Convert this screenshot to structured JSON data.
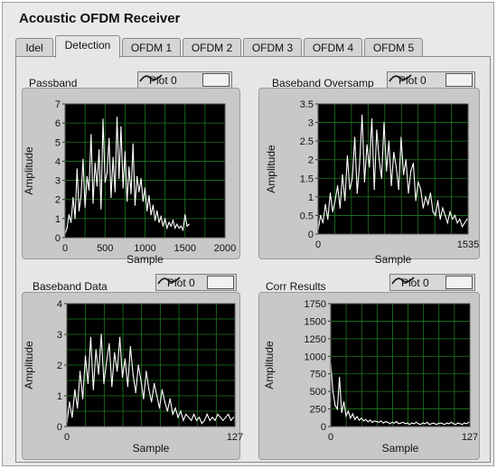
{
  "window": {
    "title": "Acoustic OFDM Receiver"
  },
  "tabs": [
    {
      "label": "Idel",
      "active": false
    },
    {
      "label": "Detection",
      "active": true
    },
    {
      "label": "OFDM 1",
      "active": false
    },
    {
      "label": "OFDM 2",
      "active": false
    },
    {
      "label": "OFDM 3",
      "active": false
    },
    {
      "label": "OFDM 4",
      "active": false
    },
    {
      "label": "OFDM 5",
      "active": false
    }
  ],
  "colors": {
    "plot_bg": "#000000",
    "grid": "#1f7a1f",
    "trace": "#ffffff"
  },
  "legend_label": "Plot 0",
  "chart_data": [
    {
      "type": "line",
      "title": "Passband",
      "xlabel": "Sample",
      "ylabel": "Amplitude",
      "xlim": [
        0,
        2000
      ],
      "ylim": [
        0,
        7
      ],
      "xticks": [
        "0",
        "500",
        "1000",
        "1500",
        "2000"
      ],
      "yticks": [
        "0",
        "1",
        "2",
        "3",
        "4",
        "5",
        "6",
        "7"
      ],
      "grid": true,
      "series": [
        {
          "values_x_start": 0,
          "values_x_step": 25,
          "values": [
            0.2,
            0.5,
            1.2,
            0.8,
            2.1,
            1.0,
            3.6,
            1.4,
            2.2,
            4.1,
            1.6,
            3.2,
            2.5,
            5.4,
            1.8,
            3.9,
            2.7,
            4.6,
            1.5,
            6.2,
            2.9,
            3.4,
            5.2,
            2.1,
            4.2,
            2.4,
            6.3,
            3.1,
            5.8,
            2.6,
            4.5,
            1.9,
            3.7,
            2.3,
            4.9,
            1.7,
            3.2,
            2.4,
            3.1,
            1.9,
            2.6,
            1.4,
            2.2,
            1.2,
            1.7,
            0.9,
            1.4,
            0.8,
            1.1,
            0.6,
            1.0,
            0.5,
            0.8,
            0.6,
            0.9,
            0.5,
            0.7,
            0.5,
            0.6,
            0.4,
            1.2,
            0.6,
            0.7
          ]
        }
      ]
    },
    {
      "type": "line",
      "title": "Baseband Oversamp",
      "xlabel": "Sample",
      "ylabel": "Amplitude",
      "xlim": [
        0,
        1535
      ],
      "ylim": [
        0,
        3.5
      ],
      "xticks": [
        "0",
        "1535"
      ],
      "yticks": [
        "0",
        "0.5",
        "1",
        "1.5",
        "2",
        "2.5",
        "3",
        "3.5"
      ],
      "grid": true,
      "series": [
        {
          "values_x_start": 0,
          "values_x_step": 25,
          "values": [
            0.1,
            0.5,
            0.3,
            0.8,
            0.4,
            1.1,
            0.6,
            0.9,
            1.3,
            0.7,
            1.6,
            0.9,
            2.1,
            1.2,
            1.5,
            2.6,
            1.1,
            1.9,
            3.2,
            1.4,
            2.4,
            1.8,
            3.1,
            1.2,
            2.8,
            2.0,
            1.5,
            3.0,
            1.7,
            2.5,
            1.3,
            2.2,
            1.8,
            1.2,
            2.6,
            1.6,
            2.0,
            1.1,
            1.7,
            1.9,
            0.9,
            1.4,
            1.2,
            0.7,
            1.0,
            0.8,
            1.1,
            0.6,
            0.5,
            0.9,
            0.4,
            0.7,
            0.5,
            0.3,
            0.6,
            0.4,
            0.5,
            0.3,
            0.4,
            0.2,
            0.3,
            0.4
          ]
        }
      ]
    },
    {
      "type": "line",
      "title": "Baseband Data",
      "xlabel": "Sample",
      "ylabel": "Amplitude",
      "xlim": [
        0,
        127
      ],
      "ylim": [
        0,
        4
      ],
      "xticks": [
        "0",
        "127"
      ],
      "yticks": [
        "0",
        "1",
        "2",
        "3",
        "4"
      ],
      "grid": true,
      "series": [
        {
          "values_x_start": 0,
          "values_x_step": 2,
          "values": [
            0.1,
            0.8,
            0.3,
            1.2,
            0.6,
            1.8,
            0.9,
            2.3,
            1.4,
            2.9,
            1.2,
            2.5,
            1.7,
            3.0,
            1.4,
            2.1,
            2.7,
            1.3,
            2.4,
            1.8,
            2.9,
            1.6,
            2.2,
            1.3,
            2.6,
            1.7,
            1.1,
            2.0,
            1.5,
            0.9,
            1.8,
            1.2,
            0.8,
            1.4,
            1.0,
            0.6,
            1.2,
            0.8,
            0.5,
            0.9,
            0.4,
            0.6,
            0.3,
            0.5,
            0.2,
            0.4,
            0.3,
            0.2,
            0.4,
            0.2,
            0.3,
            0.1,
            0.2,
            0.4,
            0.2,
            0.3,
            0.2,
            0.4,
            0.3,
            0.2,
            0.3,
            0.4,
            0.2,
            0.3
          ]
        }
      ]
    },
    {
      "type": "line",
      "title": "Corr Results",
      "xlabel": "Sample",
      "ylabel": "Amplitude",
      "xlim": [
        0,
        127
      ],
      "ylim": [
        0,
        1750
      ],
      "xticks": [
        "0",
        "127"
      ],
      "yticks": [
        "0",
        "250",
        "500",
        "750",
        "1000",
        "1250",
        "1500",
        "1750"
      ],
      "grid": true,
      "series": [
        {
          "values_x_start": 0,
          "values_x_step": 2,
          "values": [
            900,
            500,
            300,
            250,
            700,
            200,
            350,
            150,
            220,
            120,
            180,
            100,
            140,
            90,
            120,
            80,
            100,
            70,
            90,
            60,
            80,
            70,
            60,
            80,
            50,
            70,
            60,
            40,
            60,
            50,
            70,
            40,
            50,
            60,
            40,
            50,
            30,
            50,
            40,
            60,
            40,
            30,
            50,
            40,
            60,
            30,
            40,
            50,
            30,
            40,
            50,
            40,
            30,
            50,
            40,
            60,
            40,
            30,
            50,
            40,
            30,
            50,
            40,
            60
          ]
        }
      ]
    }
  ]
}
